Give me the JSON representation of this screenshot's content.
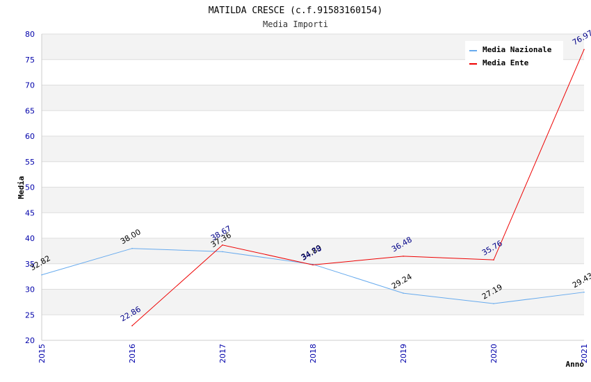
{
  "chart_data": {
    "type": "line",
    "title": "MATILDA CRESCE (c.f.91583160154)",
    "subtitle": "Media Importi",
    "xlabel": "Anno",
    "ylabel": "Media",
    "ylim": [
      20,
      80
    ],
    "ytick_step": 5,
    "x": [
      "2015",
      "2016",
      "2017",
      "2018",
      "2019",
      "2020",
      "2021"
    ],
    "grid": true,
    "legend_position": "top-right",
    "series": [
      {
        "name": "Media Nazionale",
        "color": "#66aaee",
        "label_color": "#000000",
        "values": [
          32.82,
          38.0,
          37.36,
          34.89,
          29.24,
          27.19,
          29.43
        ],
        "labels": [
          "32.82",
          "38.00",
          "37.36",
          "34.89",
          "29.24",
          "27.19",
          "29.43"
        ]
      },
      {
        "name": "Media Ente",
        "color": "#ee0000",
        "label_color": "#000088",
        "values": [
          null,
          22.86,
          38.67,
          34.78,
          36.48,
          35.76,
          76.97
        ],
        "labels": [
          null,
          "22.86",
          "38.67",
          "34.78",
          "36.48",
          "35.76",
          "76.97"
        ]
      }
    ]
  }
}
